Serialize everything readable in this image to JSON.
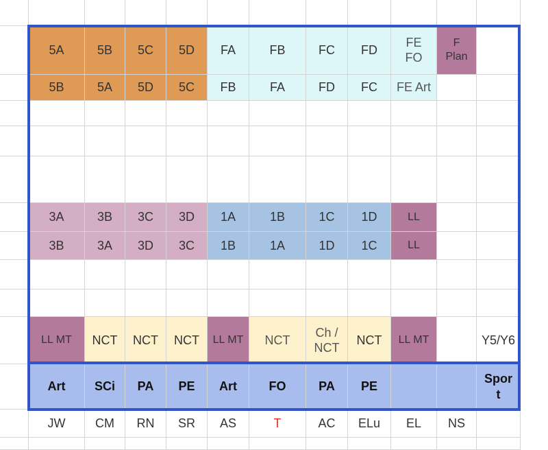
{
  "colors": {
    "orange": "#df9a55",
    "cyan": "#ddf6f8",
    "mauve": "#b37a9c",
    "pink": "#d3aec4",
    "blue": "#a7c3e3",
    "cream": "#fdf2cc",
    "lavender": "#a8bdee",
    "frame": "#2f55c8",
    "grid_line": "#d4d4d4",
    "red_text": "#e0301e"
  },
  "rows": [
    {
      "name": "row-1",
      "cells": [
        {
          "text": "5A",
          "bg": "orange"
        },
        {
          "text": "5B",
          "bg": "orange"
        },
        {
          "text": "5C",
          "bg": "orange"
        },
        {
          "text": "5D",
          "bg": "orange"
        },
        {
          "text": "FA",
          "bg": "cyan"
        },
        {
          "text": "FB",
          "bg": "cyan"
        },
        {
          "text": "FC",
          "bg": "cyan"
        },
        {
          "text": "FD",
          "bg": "cyan"
        },
        {
          "text": "FE\nFO",
          "bg": "cyan",
          "style": "gray"
        },
        {
          "text": "F\nPlan",
          "bg": "mauve",
          "style": "small"
        },
        {
          "text": ""
        }
      ]
    },
    {
      "name": "row-2",
      "cells": [
        {
          "text": "5B",
          "bg": "orange"
        },
        {
          "text": "5A",
          "bg": "orange"
        },
        {
          "text": "5D",
          "bg": "orange"
        },
        {
          "text": "5C",
          "bg": "orange"
        },
        {
          "text": "FB",
          "bg": "cyan"
        },
        {
          "text": "FA",
          "bg": "cyan"
        },
        {
          "text": "FD",
          "bg": "cyan"
        },
        {
          "text": "FC",
          "bg": "cyan"
        },
        {
          "text": "FE Art",
          "bg": "cyan",
          "style": "gray"
        },
        {
          "text": ""
        },
        {
          "text": ""
        }
      ]
    },
    {
      "name": "row-3",
      "cells": [
        {
          "text": ""
        },
        {
          "text": ""
        },
        {
          "text": ""
        },
        {
          "text": ""
        },
        {
          "text": ""
        },
        {
          "text": ""
        },
        {
          "text": ""
        },
        {
          "text": ""
        },
        {
          "text": ""
        },
        {
          "text": ""
        },
        {
          "text": ""
        }
      ]
    },
    {
      "name": "row-4",
      "cells": [
        {
          "text": ""
        },
        {
          "text": ""
        },
        {
          "text": ""
        },
        {
          "text": ""
        },
        {
          "text": ""
        },
        {
          "text": ""
        },
        {
          "text": ""
        },
        {
          "text": ""
        },
        {
          "text": ""
        },
        {
          "text": ""
        },
        {
          "text": ""
        }
      ]
    },
    {
      "name": "row-5",
      "cells": [
        {
          "text": ""
        },
        {
          "text": ""
        },
        {
          "text": ""
        },
        {
          "text": ""
        },
        {
          "text": ""
        },
        {
          "text": ""
        },
        {
          "text": ""
        },
        {
          "text": ""
        },
        {
          "text": ""
        },
        {
          "text": ""
        },
        {
          "text": ""
        }
      ]
    },
    {
      "name": "row-6",
      "cells": [
        {
          "text": "3A",
          "bg": "pink"
        },
        {
          "text": "3B",
          "bg": "pink"
        },
        {
          "text": "3C",
          "bg": "pink"
        },
        {
          "text": "3D",
          "bg": "pink"
        },
        {
          "text": "1A",
          "bg": "blue"
        },
        {
          "text": "1B",
          "bg": "blue"
        },
        {
          "text": "1C",
          "bg": "blue"
        },
        {
          "text": "1D",
          "bg": "blue"
        },
        {
          "text": "LL",
          "bg": "mauve",
          "style": "small"
        },
        {
          "text": ""
        },
        {
          "text": ""
        }
      ]
    },
    {
      "name": "row-7",
      "cells": [
        {
          "text": "3B",
          "bg": "pink"
        },
        {
          "text": "3A",
          "bg": "pink"
        },
        {
          "text": "3D",
          "bg": "pink"
        },
        {
          "text": "3C",
          "bg": "pink"
        },
        {
          "text": "1B",
          "bg": "blue"
        },
        {
          "text": "1A",
          "bg": "blue"
        },
        {
          "text": "1D",
          "bg": "blue"
        },
        {
          "text": "1C",
          "bg": "blue"
        },
        {
          "text": "LL",
          "bg": "mauve",
          "style": "small"
        },
        {
          "text": ""
        },
        {
          "text": ""
        }
      ]
    },
    {
      "name": "row-8",
      "cells": [
        {
          "text": ""
        },
        {
          "text": ""
        },
        {
          "text": ""
        },
        {
          "text": ""
        },
        {
          "text": ""
        },
        {
          "text": ""
        },
        {
          "text": ""
        },
        {
          "text": ""
        },
        {
          "text": ""
        },
        {
          "text": ""
        },
        {
          "text": ""
        }
      ]
    },
    {
      "name": "row-9",
      "cells": [
        {
          "text": ""
        },
        {
          "text": ""
        },
        {
          "text": ""
        },
        {
          "text": ""
        },
        {
          "text": ""
        },
        {
          "text": ""
        },
        {
          "text": ""
        },
        {
          "text": ""
        },
        {
          "text": ""
        },
        {
          "text": ""
        },
        {
          "text": ""
        }
      ]
    },
    {
      "name": "row-10",
      "cells": [
        {
          "text": "LL MT",
          "bg": "mauve",
          "style": "small"
        },
        {
          "text": "NCT",
          "bg": "cream"
        },
        {
          "text": "NCT",
          "bg": "cream"
        },
        {
          "text": "NCT",
          "bg": "cream"
        },
        {
          "text": "LL MT",
          "bg": "mauve",
          "style": "small"
        },
        {
          "text": "NCT",
          "bg": "cream",
          "style": "gray"
        },
        {
          "text": "Ch /\nNCT",
          "bg": "cream",
          "style": "gray"
        },
        {
          "text": "NCT",
          "bg": "cream"
        },
        {
          "text": "LL MT",
          "bg": "mauve",
          "style": "small"
        },
        {
          "text": ""
        },
        {
          "text": "Y5/Y6"
        }
      ]
    },
    {
      "name": "row-11",
      "cells": [
        {
          "text": "Art",
          "bg": "lavender",
          "style": "bold"
        },
        {
          "text": "SCi",
          "bg": "lavender",
          "style": "bold"
        },
        {
          "text": "PA",
          "bg": "lavender",
          "style": "bold"
        },
        {
          "text": "PE",
          "bg": "lavender",
          "style": "bold"
        },
        {
          "text": "Art",
          "bg": "lavender",
          "style": "bold"
        },
        {
          "text": "FO",
          "bg": "lavender",
          "style": "bold"
        },
        {
          "text": "PA",
          "bg": "lavender",
          "style": "bold"
        },
        {
          "text": "PE",
          "bg": "lavender",
          "style": "bold"
        },
        {
          "text": "",
          "bg": "lavender"
        },
        {
          "text": "",
          "bg": "lavender"
        },
        {
          "text": "Spor\nt",
          "bg": "lavender",
          "style": "bold"
        }
      ]
    },
    {
      "name": "row-12",
      "cells": [
        {
          "text": "JW"
        },
        {
          "text": "CM"
        },
        {
          "text": "RN"
        },
        {
          "text": "SR"
        },
        {
          "text": "AS"
        },
        {
          "text": "T",
          "style": "red"
        },
        {
          "text": "AC"
        },
        {
          "text": "ELu"
        },
        {
          "text": "EL"
        },
        {
          "text": "NS"
        },
        {
          "text": ""
        }
      ]
    }
  ]
}
